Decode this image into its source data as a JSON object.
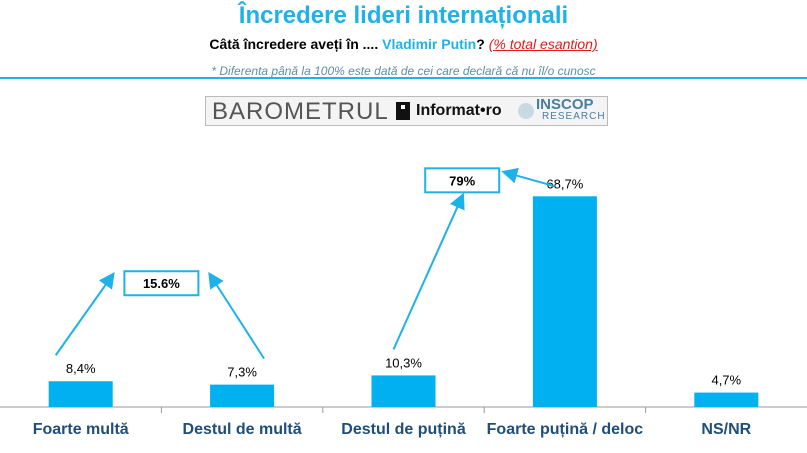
{
  "header": {
    "title": "Încredere lideri internaționali",
    "subtitle_question": "Câtă încredere aveți în ....",
    "subtitle_name": "Vladimir Putin",
    "subtitle_mark": "?",
    "subtitle_note": "(% total esantion)",
    "footnote": "* Diferenta până la 100% este dată de cei care declară că nu îl/o cunosc"
  },
  "logo": {
    "brand": "BAROMETRUL",
    "informat": "Informat•ro",
    "inscop": "INSCOP",
    "research": "RESEARCH"
  },
  "colors": {
    "bar": "#00b0f0",
    "title": "#1fb2e8",
    "category": "#1f4e79",
    "arrow": "#1fb2e8"
  },
  "chart_data": {
    "type": "bar",
    "categories": [
      "Foarte multă",
      "Destul de multă",
      "Destul de puțină",
      "Foarte puțină / deloc",
      "NS/NR"
    ],
    "values": [
      8.4,
      7.3,
      10.3,
      68.7,
      4.7
    ],
    "value_labels": [
      "8,4%",
      "7,3%",
      "10,3%",
      "68,7%",
      "4,7%"
    ],
    "ylim": [
      0,
      75
    ],
    "grid": false,
    "group_totals": [
      {
        "label": "15.6%",
        "covers": [
          0,
          1
        ]
      },
      {
        "label": "79%",
        "covers": [
          2,
          3
        ]
      }
    ]
  }
}
